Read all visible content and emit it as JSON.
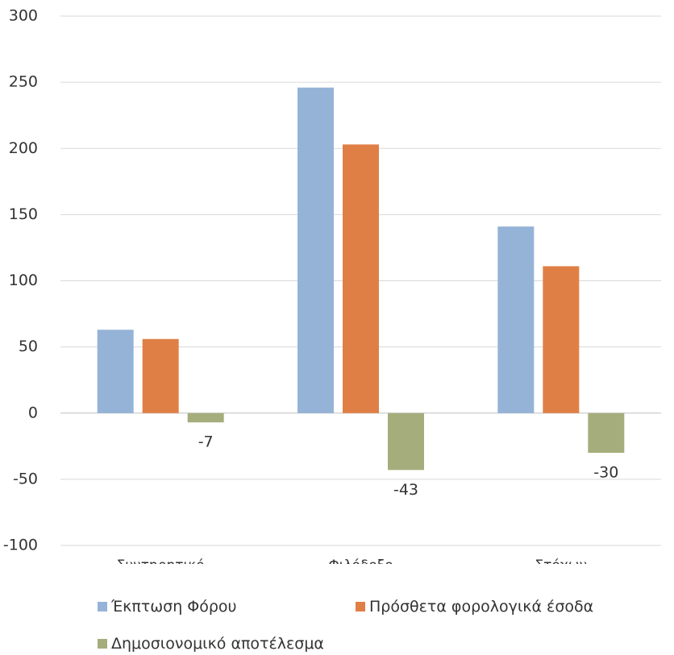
{
  "chart_data": {
    "type": "bar",
    "title": "",
    "xlabel": "",
    "ylabel": "",
    "categories": [
      "Συντηρητικό",
      "Φιλόδοξο",
      "Στόχων"
    ],
    "ylim": [
      -100,
      300
    ],
    "yticks": [
      300,
      250,
      200,
      150,
      100,
      50,
      0,
      -50,
      -100
    ],
    "grid": true,
    "legend_position": "bottom",
    "series": [
      {
        "name": "Έκπτωση Φόρου",
        "color": "#95B3D7",
        "values": [
          63,
          246,
          141
        ]
      },
      {
        "name": "Πρόσθετα φορολογικά έσοδα",
        "color": "#E07F45",
        "values": [
          56,
          203,
          111
        ]
      },
      {
        "name": "Δημοσιονομικό αποτέλεσμα",
        "color": "#A5AD7C",
        "values": [
          -7,
          -43,
          -30
        ],
        "data_labels": [
          "-7",
          "-43",
          "-30"
        ]
      }
    ]
  }
}
